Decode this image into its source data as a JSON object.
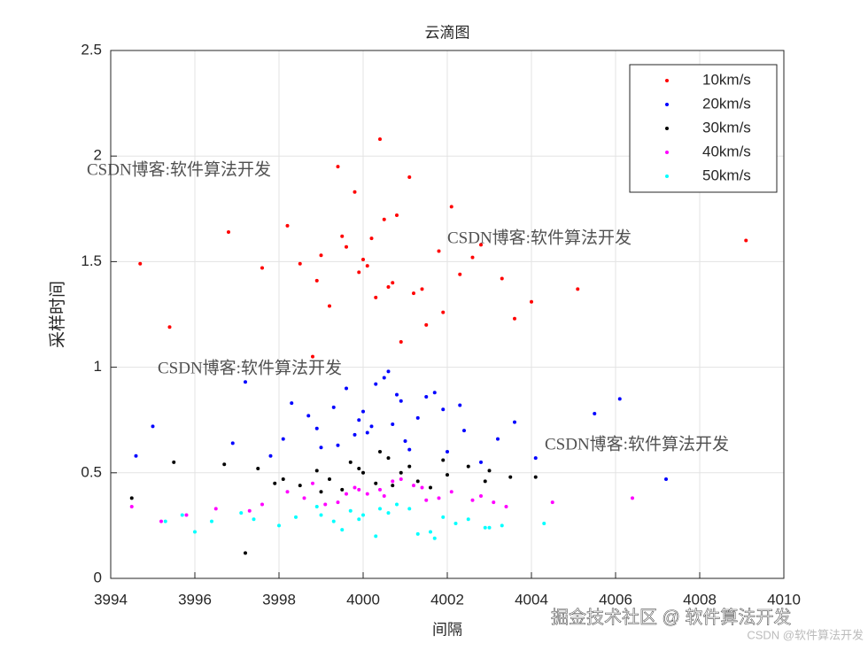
{
  "chart_data": {
    "type": "scatter",
    "title": "云滴图",
    "xlabel": "间隔",
    "ylabel": "采样时间",
    "xlim": [
      3994,
      4010
    ],
    "xticks": [
      3994,
      3996,
      3998,
      4000,
      4002,
      4004,
      4006,
      4008,
      4010
    ],
    "ylim": [
      0,
      2.5
    ],
    "yticks": [
      0,
      0.5,
      1,
      1.5,
      2,
      2.5
    ],
    "grid": true,
    "legend": "northeast",
    "series": [
      {
        "name": "10km/s",
        "color": "#ff0000",
        "x": [
          4000.1,
          3999.5,
          4001.2,
          4000.8,
          3998.9,
          4001.8,
          4000.4,
          3999.2,
          4002.3,
          4000.0,
          3998.2,
          4001.5,
          4000.6,
          3999.8,
          4002.8,
          3997.6,
          4000.9,
          3999.0,
          4001.1,
          4003.3,
          3996.8,
          4000.3,
          3999.6,
          4001.9,
          4002.1,
          3998.5,
          4000.7,
          3999.4,
          4004.0,
          3995.4,
          4000.2,
          4001.4,
          3998.8,
          4002.6,
          4009.1,
          3994.7,
          4005.1,
          4000.5,
          3999.9,
          4003.6
        ],
        "values": [
          1.48,
          1.62,
          1.35,
          1.72,
          1.41,
          1.55,
          2.08,
          1.29,
          1.44,
          1.51,
          1.67,
          1.2,
          1.38,
          1.83,
          1.58,
          1.47,
          1.12,
          1.53,
          1.9,
          1.42,
          1.64,
          1.33,
          1.57,
          1.26,
          1.76,
          1.49,
          1.4,
          1.95,
          1.31,
          1.19,
          1.61,
          1.37,
          1.05,
          1.52,
          1.6,
          1.49,
          1.37,
          1.7,
          1.45,
          1.23
        ]
      },
      {
        "name": "20km/s",
        "color": "#0000ff",
        "x": [
          4000.2,
          3999.3,
          4001.0,
          3998.7,
          4001.7,
          4000.5,
          3999.0,
          4002.4,
          4000.9,
          3997.8,
          4001.3,
          3999.6,
          4003.2,
          4000.0,
          3998.3,
          4002.0,
          4000.7,
          3999.8,
          4004.1,
          3996.9,
          4001.5,
          4000.3,
          3998.9,
          4002.8,
          4007.2,
          3994.6,
          4005.5,
          4000.6,
          3999.4,
          4001.9,
          4006.1,
          3995.0,
          4000.1,
          4003.6,
          3997.2,
          4001.1,
          3998.1,
          4002.3,
          3999.9,
          4000.8
        ],
        "values": [
          0.72,
          0.81,
          0.65,
          0.77,
          0.88,
          0.95,
          0.62,
          0.7,
          0.84,
          0.58,
          0.76,
          0.9,
          0.66,
          0.79,
          0.83,
          0.6,
          0.73,
          0.68,
          0.57,
          0.64,
          0.86,
          0.92,
          0.71,
          0.55,
          0.47,
          0.58,
          0.78,
          0.98,
          0.63,
          0.8,
          0.85,
          0.72,
          0.69,
          0.74,
          0.93,
          0.61,
          0.66,
          0.82,
          0.75,
          0.87
        ]
      },
      {
        "name": "30km/s",
        "color": "#000000",
        "x": [
          4000.0,
          3999.2,
          4001.1,
          3998.5,
          4002.0,
          4000.6,
          3997.5,
          4002.9,
          3999.7,
          4001.6,
          3996.7,
          4003.5,
          4000.3,
          3998.9,
          4001.9,
          3999.5,
          4004.1,
          3995.5,
          3994.5,
          4000.9,
          3997.2,
          4002.5,
          3998.1,
          4001.3,
          4000.4,
          3999.0,
          4003.0,
          3997.9,
          4000.7,
          3999.9
        ],
        "values": [
          0.5,
          0.47,
          0.53,
          0.44,
          0.49,
          0.57,
          0.52,
          0.46,
          0.55,
          0.43,
          0.54,
          0.48,
          0.45,
          0.51,
          0.56,
          0.42,
          0.48,
          0.55,
          0.38,
          0.5,
          0.12,
          0.53,
          0.47,
          0.46,
          0.6,
          0.41,
          0.51,
          0.45,
          0.44,
          0.52
        ]
      },
      {
        "name": "40km/s",
        "color": "#ff00ff",
        "x": [
          4000.1,
          3999.4,
          4001.2,
          3998.6,
          4002.1,
          4000.7,
          3997.6,
          4002.8,
          3999.8,
          4001.5,
          3996.5,
          4003.4,
          4000.4,
          3998.8,
          4001.8,
          3999.6,
          4004.5,
          3995.8,
          3994.5,
          4000.9,
          3997.3,
          4002.6,
          3998.2,
          4001.4,
          4000.5,
          3999.1,
          4003.1,
          3995.2,
          4006.4,
          3999.9
        ],
        "values": [
          0.4,
          0.36,
          0.44,
          0.38,
          0.41,
          0.46,
          0.35,
          0.39,
          0.43,
          0.37,
          0.33,
          0.34,
          0.42,
          0.45,
          0.38,
          0.4,
          0.36,
          0.3,
          0.34,
          0.47,
          0.32,
          0.37,
          0.41,
          0.43,
          0.39,
          0.35,
          0.36,
          0.27,
          0.38,
          0.42
        ]
      },
      {
        "name": "50km/s",
        "color": "#00ffff",
        "x": [
          4000.0,
          3999.3,
          4001.1,
          3998.4,
          4002.2,
          4000.6,
          3997.4,
          4002.9,
          3999.7,
          4001.6,
          3996.4,
          4003.3,
          4000.3,
          3998.9,
          4001.9,
          3999.5,
          4004.3,
          3995.7,
          3995.3,
          4000.8,
          3997.1,
          4002.5,
          3998.0,
          4001.3,
          4000.4,
          3999.0,
          4003.0,
          3996.0,
          4001.7,
          3999.9
        ],
        "values": [
          0.3,
          0.27,
          0.33,
          0.29,
          0.26,
          0.31,
          0.28,
          0.24,
          0.32,
          0.22,
          0.27,
          0.25,
          0.2,
          0.34,
          0.29,
          0.23,
          0.26,
          0.3,
          0.27,
          0.35,
          0.31,
          0.28,
          0.25,
          0.21,
          0.33,
          0.3,
          0.24,
          0.22,
          0.19,
          0.28
        ]
      }
    ],
    "watermarks": [
      "CSDN博客:软件算法开发",
      "CSDN博客:软件算法开发",
      "CSDN博客:软件算法开发",
      "CSDN博客:软件算法开发",
      "掘金技术社区 @ 软件算法开发",
      "CSDN @软件算法开发"
    ]
  }
}
